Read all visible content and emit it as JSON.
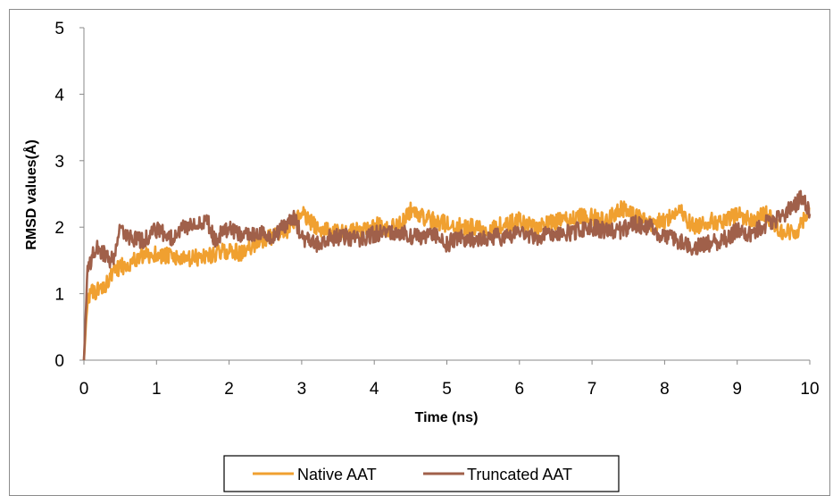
{
  "chart_data": {
    "type": "line",
    "title": "",
    "xlabel": "Time (ns)",
    "ylabel": "RMSD values(Å)",
    "xlim": [
      0,
      10
    ],
    "ylim": [
      0,
      5
    ],
    "x_ticks": [
      0,
      1,
      2,
      3,
      4,
      5,
      6,
      7,
      8,
      9,
      10
    ],
    "y_ticks": [
      0,
      1,
      2,
      3,
      4,
      5
    ],
    "grid": false,
    "legend_position": "bottom",
    "series": [
      {
        "name": "Native AAT",
        "color": "#f0a030",
        "x": [
          0,
          0.05,
          0.1,
          0.2,
          0.3,
          0.4,
          0.5,
          0.6,
          0.8,
          1.0,
          1.2,
          1.4,
          1.6,
          1.8,
          2.0,
          2.2,
          2.4,
          2.6,
          2.8,
          2.9,
          3.0,
          3.2,
          3.4,
          3.6,
          3.8,
          4.0,
          4.2,
          4.4,
          4.5,
          4.6,
          4.8,
          5.0,
          5.2,
          5.4,
          5.6,
          5.8,
          6.0,
          6.2,
          6.4,
          6.6,
          6.8,
          7.0,
          7.2,
          7.4,
          7.6,
          7.8,
          8.0,
          8.2,
          8.4,
          8.6,
          8.8,
          9.0,
          9.2,
          9.4,
          9.6,
          9.8,
          10.0
        ],
        "y": [
          0,
          0.95,
          1.0,
          1.05,
          1.15,
          1.3,
          1.4,
          1.45,
          1.55,
          1.6,
          1.55,
          1.5,
          1.55,
          1.6,
          1.65,
          1.6,
          1.8,
          1.85,
          1.95,
          2.1,
          2.2,
          2.0,
          1.95,
          1.9,
          1.95,
          2.05,
          1.95,
          2.1,
          2.25,
          2.2,
          2.1,
          2.05,
          2.0,
          2.0,
          1.95,
          2.05,
          2.1,
          2.0,
          2.05,
          2.1,
          2.15,
          2.15,
          2.1,
          2.3,
          2.15,
          2.05,
          2.1,
          2.25,
          2.0,
          2.1,
          2.05,
          2.2,
          2.1,
          2.2,
          1.95,
          1.9,
          2.3
        ]
      },
      {
        "name": "Truncated AAT",
        "color": "#a0604a",
        "x": [
          0,
          0.05,
          0.1,
          0.15,
          0.2,
          0.3,
          0.4,
          0.5,
          0.6,
          0.8,
          1.0,
          1.2,
          1.4,
          1.6,
          1.7,
          1.8,
          2.0,
          2.2,
          2.4,
          2.6,
          2.8,
          2.9,
          3.0,
          3.2,
          3.4,
          3.6,
          3.8,
          4.0,
          4.2,
          4.4,
          4.6,
          4.8,
          5.0,
          5.2,
          5.4,
          5.6,
          5.8,
          6.0,
          6.2,
          6.4,
          6.6,
          6.8,
          7.0,
          7.2,
          7.4,
          7.6,
          7.8,
          8.0,
          8.2,
          8.4,
          8.6,
          8.8,
          9.0,
          9.2,
          9.4,
          9.6,
          9.8,
          9.9,
          10.0
        ],
        "y": [
          0,
          1.35,
          1.5,
          1.65,
          1.7,
          1.55,
          1.5,
          1.95,
          1.85,
          1.8,
          1.95,
          1.85,
          2.0,
          2.1,
          2.1,
          1.8,
          2.0,
          1.85,
          1.9,
          1.85,
          2.05,
          2.15,
          1.85,
          1.75,
          1.85,
          1.85,
          1.8,
          1.9,
          1.95,
          1.9,
          1.85,
          1.9,
          1.75,
          1.85,
          1.8,
          1.85,
          1.85,
          1.95,
          1.85,
          1.9,
          1.9,
          1.95,
          2.0,
          1.95,
          1.95,
          2.05,
          2.0,
          1.85,
          1.8,
          1.7,
          1.75,
          1.8,
          1.95,
          1.9,
          2.05,
          2.15,
          2.35,
          2.45,
          2.2
        ]
      }
    ]
  }
}
